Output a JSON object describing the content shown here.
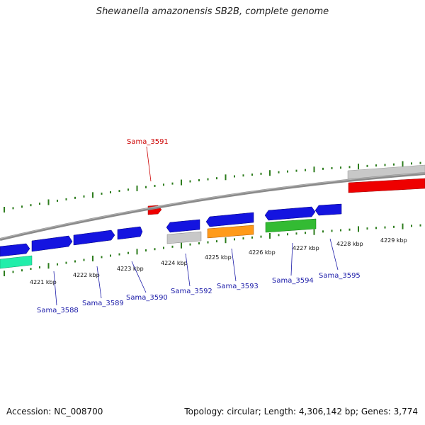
{
  "title": "Shewanella amazonensis SB2B, complete genome",
  "footer": {
    "accession": "Accession: NC_008700",
    "summary": "Topology: circular; Length: 4,306,142 bp; Genes: 3,774"
  },
  "colors": {
    "backbone": "#8a8a8a",
    "tick": "#2e7d1e",
    "label_blue": "#1a1aa8",
    "label_red": "#cc0000",
    "gene_blue": "#1414e0",
    "gene_red": "#ee0000",
    "gene_grey": "#c8c8c8",
    "gene_orange": "#ff9a1a",
    "gene_green": "#33bb33",
    "gene_teal": "#22eeaa"
  },
  "scale_labels": [
    "4221 kbp",
    "4222 kbp",
    "4223 kbp",
    "4224 kbp",
    "4225 kbp",
    "4226 kbp",
    "4227 kbp",
    "4228 kbp",
    "4229 kbp"
  ],
  "gene_labels": [
    {
      "text": "Sama_3591",
      "color": "red"
    },
    {
      "text": "Sama_3588",
      "color": "blue"
    },
    {
      "text": "Sama_3589",
      "color": "blue"
    },
    {
      "text": "Sama_3590",
      "color": "blue"
    },
    {
      "text": "Sama_3592",
      "color": "blue"
    },
    {
      "text": "Sama_3593",
      "color": "blue"
    },
    {
      "text": "Sama_3594",
      "color": "blue"
    },
    {
      "text": "Sama_3595",
      "color": "blue"
    }
  ]
}
